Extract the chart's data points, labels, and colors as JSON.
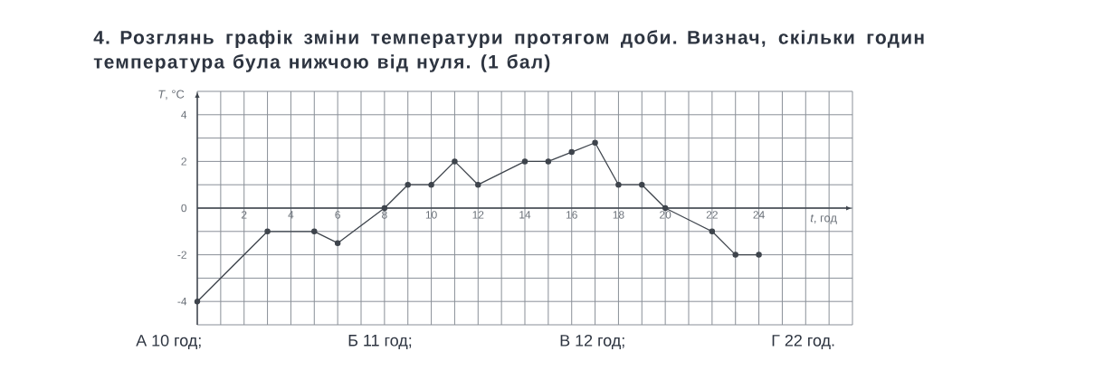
{
  "chart_data": {
    "type": "line",
    "title": "4. Розглянь графік зміни температури протягом доби. Визнач, скільки годин температура була нижчою від нуля. (1 бал)",
    "xlabel": "*t*, год",
    "ylabel": "*T*, °C",
    "x": [
      0,
      3,
      5,
      6,
      8,
      9,
      10,
      11,
      12,
      14,
      15,
      16,
      17,
      18,
      19,
      20,
      22,
      23,
      24
    ],
    "values": [
      -4,
      -1,
      -1,
      -1.5,
      0,
      1,
      1,
      2,
      1,
      2,
      2,
      2.4,
      2.8,
      1,
      1,
      0,
      -1,
      -2,
      -2
    ],
    "color": "#3e444c",
    "marker": "circle",
    "line_style": "solid",
    "grid": true,
    "xlim": [
      0,
      28
    ],
    "ylim": [
      -5,
      5
    ],
    "xticks": [
      {
        "value": 0,
        "label": null
      },
      {
        "value": 1,
        "label": null
      },
      2,
      {
        "value": 3,
        "label": null
      },
      4,
      {
        "value": 5,
        "label": null
      },
      6,
      {
        "value": 7,
        "label": null
      },
      8,
      {
        "value": 9,
        "label": null
      },
      10,
      {
        "value": 11,
        "label": null
      },
      12,
      {
        "value": 13,
        "label": null
      },
      14,
      {
        "value": 15,
        "label": null
      },
      16,
      {
        "value": 17,
        "label": null
      },
      18,
      {
        "value": 19,
        "label": null
      },
      20,
      {
        "value": 21,
        "label": null
      },
      22,
      {
        "value": 23,
        "label": null
      },
      24,
      {
        "value": 25,
        "label": null
      },
      {
        "value": 26,
        "label": null
      },
      {
        "value": 27,
        "label": null
      },
      {
        "value": 28,
        "label": null
      }
    ],
    "yticks": [
      {
        "value": -5,
        "label": null
      },
      -4,
      {
        "value": -3,
        "label": null
      },
      -2,
      {
        "value": -1,
        "label": null
      },
      0,
      {
        "value": 1,
        "label": null
      },
      2,
      {
        "value": 3,
        "label": null
      },
      4,
      {
        "value": 5,
        "label": null
      }
    ],
    "annotations": [
      "А 10 год;",
      "Б 11 год;",
      "В 12 год;",
      "Г 22 год."
    ]
  }
}
